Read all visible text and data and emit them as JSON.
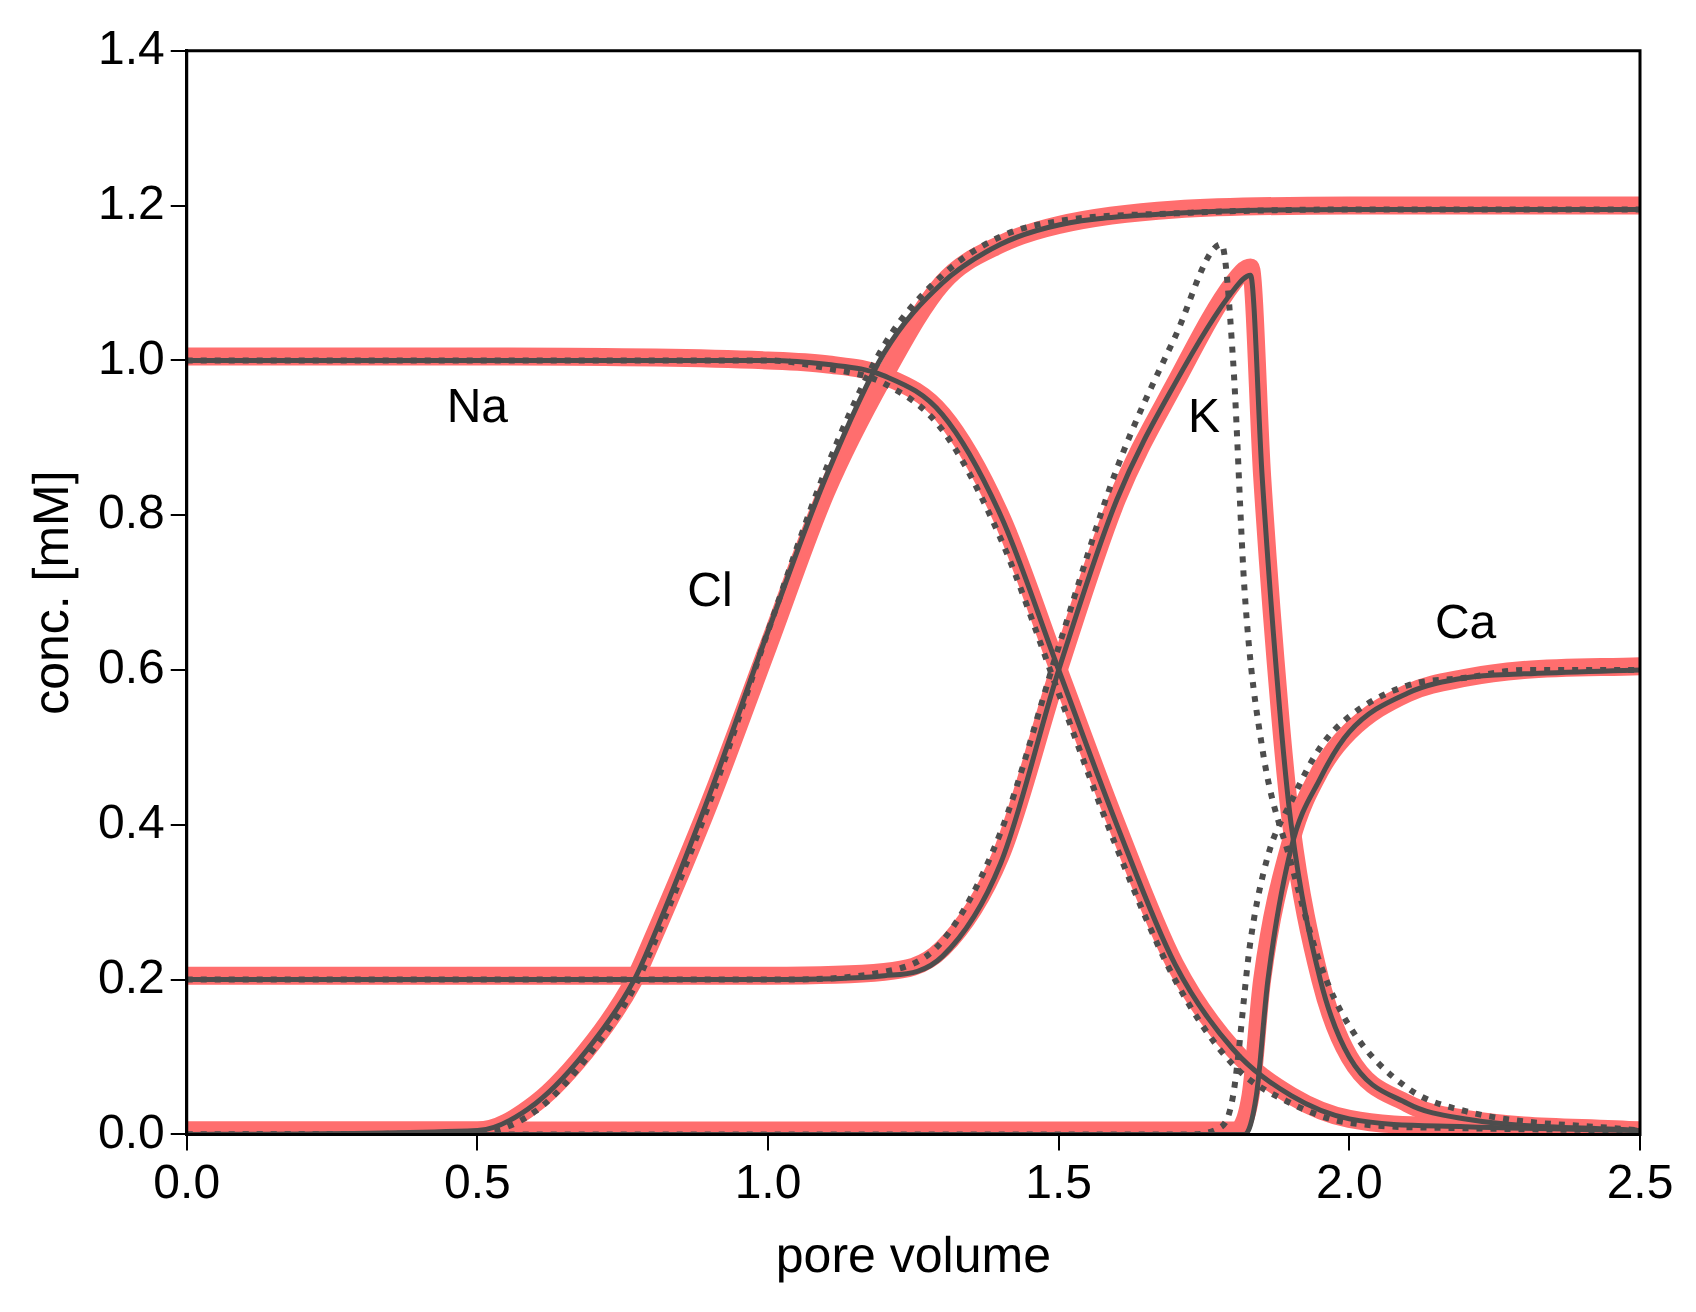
{
  "chart_data": {
    "type": "line",
    "xlabel": "pore volume",
    "ylabel": "conc. [mM]",
    "xlim": [
      0,
      2.5
    ],
    "ylim": [
      0,
      1.4
    ],
    "xticks": [
      {
        "value": 0,
        "label": "0.0"
      },
      0.5,
      {
        "value": 1,
        "label": "1.0"
      },
      1.5,
      {
        "value": 2,
        "label": "2.0"
      },
      2.5
    ],
    "yticks": [
      {
        "value": 0,
        "label": "0.0"
      },
      0.2,
      0.4,
      0.6,
      0.8,
      {
        "value": 1,
        "label": "1.0"
      },
      1.2,
      1.4
    ],
    "grid": false,
    "legend": false,
    "marker": "none",
    "series": [
      {
        "color": "#ff6e6e",
        "line_style": "solid",
        "x": [
          0,
          0.5,
          1,
          1.1,
          1.2,
          1.3,
          1.4,
          1.5,
          1.6,
          1.7,
          1.8,
          1.9,
          2,
          2.2,
          2.5
        ],
        "values": [
          1.005,
          1.005,
          1.0,
          0.995,
          0.98,
          0.93,
          0.8,
          0.6,
          0.4,
          0.22,
          0.11,
          0.05,
          0.02,
          0.01,
          0.005
        ]
      },
      {
        "color": "#4d4d4d",
        "line_style": "solid",
        "x": [
          0,
          0.5,
          1,
          1.1,
          1.2,
          1.3,
          1.4,
          1.5,
          1.6,
          1.7,
          1.8,
          1.9,
          2,
          2.2,
          2.5
        ],
        "values": [
          1.0,
          1.0,
          1.0,
          0.995,
          0.98,
          0.93,
          0.8,
          0.6,
          0.4,
          0.22,
          0.11,
          0.05,
          0.02,
          0.01,
          0.005
        ]
      },
      {
        "color": "#4d4d4d",
        "line_style": "dotted",
        "x": [
          0,
          0.5,
          1,
          1.1,
          1.2,
          1.3,
          1.4,
          1.5,
          1.6,
          1.7,
          1.8,
          1.9,
          2,
          2.2,
          2.5
        ],
        "values": [
          1.0,
          1.0,
          1.0,
          0.99,
          0.97,
          0.91,
          0.77,
          0.57,
          0.37,
          0.2,
          0.09,
          0.04,
          0.015,
          0.008,
          0.005
        ]
      },
      {
        "color": "#ff6e6e",
        "line_style": "solid",
        "x": [
          0,
          0.5,
          0.6,
          0.7,
          0.77,
          0.8,
          0.9,
          1,
          1.1,
          1.2,
          1.3,
          1.4,
          1.5,
          1.7,
          2,
          2.5
        ],
        "values": [
          0.005,
          0.005,
          0.04,
          0.12,
          0.2,
          0.25,
          0.43,
          0.63,
          0.83,
          0.98,
          1.1,
          1.15,
          1.175,
          1.195,
          1.2,
          1.2
        ]
      },
      {
        "color": "#4d4d4d",
        "line_style": "solid",
        "x": [
          0,
          0.5,
          0.6,
          0.7,
          0.77,
          0.8,
          0.9,
          1,
          1.1,
          1.2,
          1.3,
          1.4,
          1.5,
          1.7,
          2,
          2.5
        ],
        "values": [
          0,
          0.005,
          0.04,
          0.12,
          0.2,
          0.25,
          0.44,
          0.65,
          0.85,
          1.01,
          1.1,
          1.15,
          1.175,
          1.19,
          1.195,
          1.195
        ]
      },
      {
        "color": "#4d4d4d",
        "line_style": "dotted",
        "x": [
          0,
          0.5,
          0.6,
          0.7,
          0.77,
          0.8,
          0.9,
          1,
          1.1,
          1.2,
          1.3,
          1.4,
          1.5,
          1.7,
          2,
          2.5
        ],
        "values": [
          0,
          0.002,
          0.03,
          0.11,
          0.19,
          0.24,
          0.43,
          0.65,
          0.86,
          1.02,
          1.11,
          1.16,
          1.18,
          1.19,
          1.195,
          1.195
        ]
      },
      {
        "color": "#ff6e6e",
        "line_style": "solid",
        "x": [
          0,
          1,
          1.2,
          1.3,
          1.4,
          1.5,
          1.6,
          1.7,
          1.8,
          1.83,
          1.85,
          1.88,
          1.9,
          1.95,
          2,
          2.1,
          2.2,
          2.5
        ],
        "values": [
          0.205,
          0.205,
          0.21,
          0.24,
          0.36,
          0.6,
          0.82,
          0.97,
          1.1,
          1.12,
          0.85,
          0.55,
          0.4,
          0.2,
          0.1,
          0.04,
          0.02,
          0.005
        ]
      },
      {
        "color": "#4d4d4d",
        "line_style": "solid",
        "x": [
          0,
          1,
          1.2,
          1.3,
          1.4,
          1.5,
          1.6,
          1.7,
          1.8,
          1.83,
          1.85,
          1.88,
          1.9,
          1.95,
          2,
          2.1,
          2.2,
          2.5
        ],
        "values": [
          0.2,
          0.2,
          0.205,
          0.23,
          0.35,
          0.6,
          0.82,
          0.97,
          1.09,
          1.11,
          0.85,
          0.55,
          0.4,
          0.2,
          0.1,
          0.04,
          0.02,
          0.005
        ]
      },
      {
        "color": "#4d4d4d",
        "line_style": "dotted",
        "x": [
          0,
          1,
          1.2,
          1.3,
          1.4,
          1.5,
          1.6,
          1.7,
          1.78,
          1.8,
          1.82,
          1.85,
          1.9,
          1.95,
          2,
          2.1,
          2.2,
          2.5
        ],
        "values": [
          0.2,
          0.2,
          0.21,
          0.25,
          0.39,
          0.63,
          0.86,
          1.03,
          1.15,
          1.0,
          0.7,
          0.5,
          0.35,
          0.22,
          0.14,
          0.06,
          0.03,
          0.005
        ]
      },
      {
        "color": "#ff6e6e",
        "line_style": "solid",
        "x": [
          0,
          1.8,
          1.83,
          1.85,
          1.9,
          1.95,
          2,
          2.1,
          2.2,
          2.3,
          2.5
        ],
        "values": [
          0.005,
          0.005,
          0.05,
          0.2,
          0.38,
          0.47,
          0.52,
          0.57,
          0.59,
          0.6,
          0.605
        ]
      },
      {
        "color": "#4d4d4d",
        "line_style": "solid",
        "x": [
          0,
          1.82,
          1.84,
          1.86,
          1.9,
          1.95,
          2,
          2.1,
          2.2,
          2.3,
          2.5
        ],
        "values": [
          0,
          0,
          0.05,
          0.2,
          0.37,
          0.46,
          0.52,
          0.57,
          0.59,
          0.595,
          0.6
        ]
      },
      {
        "color": "#4d4d4d",
        "line_style": "dotted",
        "x": [
          0,
          1.72,
          1.78,
          1.8,
          1.83,
          1.86,
          1.9,
          1.95,
          2,
          2.1,
          2.2,
          2.3,
          2.5
        ],
        "values": [
          0,
          0,
          0.01,
          0.05,
          0.25,
          0.36,
          0.43,
          0.5,
          0.54,
          0.58,
          0.59,
          0.6,
          0.6
        ]
      }
    ],
    "annotations": [
      "Na",
      "Cl",
      "K",
      "Ca"
    ]
  }
}
